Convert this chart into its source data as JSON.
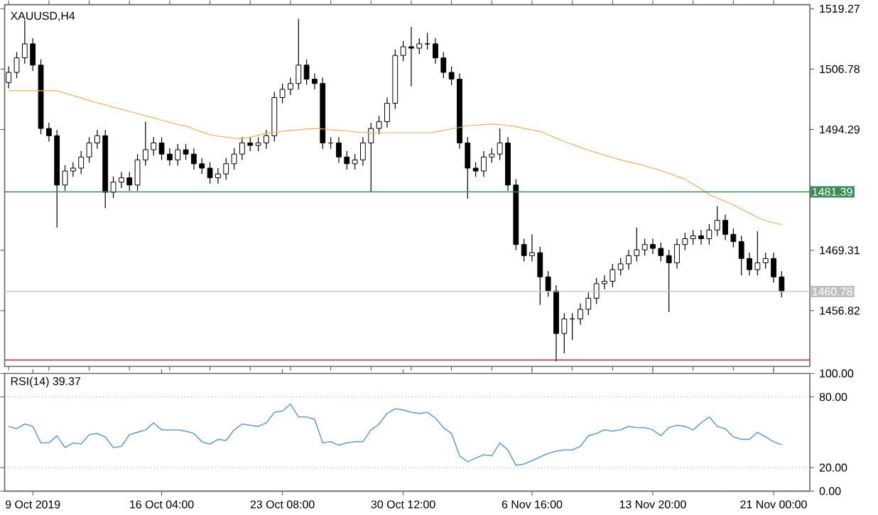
{
  "chart_data": [
    {
      "type": "candlestick",
      "title": "XAUUSD,H4",
      "categories": [
        null,
        null,
        null,
        null,
        null,
        null,
        null,
        null,
        null,
        null,
        null,
        null,
        null,
        null,
        null,
        null,
        null,
        null,
        null,
        null,
        null,
        null,
        null,
        null,
        null,
        null,
        null,
        null,
        null,
        null,
        null,
        null,
        null,
        null,
        null,
        null,
        null,
        null,
        null,
        null,
        null,
        null,
        null,
        null,
        null,
        null,
        null,
        null,
        null,
        null,
        null,
        null,
        null,
        null,
        null,
        null,
        null,
        null,
        null,
        null,
        null,
        null,
        null,
        null,
        null,
        null,
        null,
        null,
        null,
        null,
        null,
        null,
        null,
        null,
        null,
        null,
        null,
        null,
        null,
        null,
        null,
        null,
        null,
        null,
        null,
        null,
        null,
        null,
        null,
        null,
        null,
        null,
        null,
        null,
        null,
        null,
        null
      ],
      "ohlc": [
        [
          1504.0,
          1507.3,
          1502.8,
          1506.1
        ],
        [
          1506.1,
          1510.3,
          1504.9,
          1509.1
        ],
        [
          1509.1,
          1516.9,
          1507.9,
          1512.0
        ],
        [
          1512.0,
          1513.2,
          1506.4,
          1507.6
        ],
        [
          1507.6,
          1508.8,
          1493.3,
          1494.5
        ],
        [
          1494.5,
          1495.7,
          1491.8,
          1493.0
        ],
        [
          1493.0,
          1494.2,
          1474.0,
          1482.8
        ],
        [
          1482.8,
          1486.9,
          1481.6,
          1485.7
        ],
        [
          1485.7,
          1487.5,
          1484.5,
          1486.3
        ],
        [
          1486.3,
          1489.8,
          1485.1,
          1488.6
        ],
        [
          1488.6,
          1492.7,
          1487.4,
          1491.5
        ],
        [
          1491.5,
          1494.2,
          1490.3,
          1493.0
        ],
        [
          1493.0,
          1494.2,
          1478.0,
          1481.3
        ],
        [
          1481.3,
          1484.6,
          1480.1,
          1483.4
        ],
        [
          1483.4,
          1485.5,
          1482.2,
          1484.3
        ],
        [
          1484.3,
          1485.5,
          1481.6,
          1482.8
        ],
        [
          1482.8,
          1489.2,
          1481.6,
          1488.0
        ],
        [
          1488.0,
          1495.9,
          1486.8,
          1490.1
        ],
        [
          1490.1,
          1492.7,
          1488.9,
          1491.5
        ],
        [
          1491.5,
          1492.7,
          1488.0,
          1489.2
        ],
        [
          1489.2,
          1490.4,
          1486.8,
          1488.0
        ],
        [
          1488.0,
          1491.3,
          1486.8,
          1490.1
        ],
        [
          1490.1,
          1491.3,
          1488.0,
          1489.2
        ],
        [
          1489.2,
          1490.4,
          1486.0,
          1487.2
        ],
        [
          1487.2,
          1488.4,
          1485.1,
          1486.3
        ],
        [
          1486.3,
          1487.5,
          1483.1,
          1484.3
        ],
        [
          1484.3,
          1486.3,
          1483.1,
          1485.1
        ],
        [
          1485.1,
          1488.4,
          1483.9,
          1487.2
        ],
        [
          1487.2,
          1490.4,
          1486.0,
          1489.2
        ],
        [
          1489.2,
          1492.7,
          1488.0,
          1491.5
        ],
        [
          1491.5,
          1492.7,
          1489.8,
          1491.0
        ],
        [
          1491.0,
          1492.7,
          1489.8,
          1491.5
        ],
        [
          1491.5,
          1494.2,
          1490.3,
          1493.0
        ],
        [
          1493.0,
          1502.1,
          1491.8,
          1500.9
        ],
        [
          1500.9,
          1503.8,
          1499.7,
          1502.6
        ],
        [
          1502.6,
          1505.0,
          1501.4,
          1503.8
        ],
        [
          1503.8,
          1517.2,
          1502.6,
          1507.6
        ],
        [
          1507.6,
          1508.8,
          1503.5,
          1504.7
        ],
        [
          1504.7,
          1505.9,
          1502.6,
          1503.8
        ],
        [
          1503.8,
          1505.0,
          1490.3,
          1491.5
        ],
        [
          1491.5,
          1492.7,
          1490.3,
          1491.5
        ],
        [
          1491.5,
          1492.7,
          1487.4,
          1488.6
        ],
        [
          1488.6,
          1489.8,
          1486.0,
          1487.2
        ],
        [
          1487.2,
          1489.2,
          1486.0,
          1488.0
        ],
        [
          1488.0,
          1492.7,
          1486.8,
          1491.5
        ],
        [
          1491.5,
          1495.7,
          1481.3,
          1494.5
        ],
        [
          1494.5,
          1497.1,
          1493.3,
          1495.9
        ],
        [
          1495.9,
          1500.9,
          1494.7,
          1499.7
        ],
        [
          1499.7,
          1510.8,
          1498.5,
          1509.6
        ],
        [
          1509.6,
          1512.6,
          1508.4,
          1511.4
        ],
        [
          1511.4,
          1515.5,
          1503.2,
          1511.1
        ],
        [
          1511.1,
          1513.2,
          1509.9,
          1512.0
        ],
        [
          1512.0,
          1514.3,
          1510.8,
          1512.0
        ],
        [
          1512.0,
          1513.2,
          1507.9,
          1509.1
        ],
        [
          1509.1,
          1510.3,
          1504.9,
          1506.1
        ],
        [
          1506.1,
          1507.3,
          1503.5,
          1504.7
        ],
        [
          1504.7,
          1505.9,
          1490.3,
          1491.5
        ],
        [
          1491.5,
          1492.7,
          1480.0,
          1486.3
        ],
        [
          1486.3,
          1487.5,
          1484.5,
          1485.7
        ],
        [
          1485.7,
          1489.8,
          1484.5,
          1488.6
        ],
        [
          1488.6,
          1490.4,
          1487.4,
          1489.2
        ],
        [
          1489.2,
          1494.5,
          1488.0,
          1491.5
        ],
        [
          1491.5,
          1492.7,
          1481.6,
          1482.8
        ],
        [
          1482.8,
          1484.0,
          1469.3,
          1470.5
        ],
        [
          1470.5,
          1471.7,
          1467.0,
          1468.2
        ],
        [
          1468.2,
          1472.6,
          1467.0,
          1468.8
        ],
        [
          1468.8,
          1470.0,
          1458.0,
          1463.8
        ],
        [
          1463.8,
          1465.0,
          1459.7,
          1460.9
        ],
        [
          1460.9,
          1462.1,
          1446.3,
          1452.1
        ],
        [
          1452.1,
          1456.3,
          1448.0,
          1455.1
        ],
        [
          1455.1,
          1456.3,
          1450.7,
          1455.1
        ],
        [
          1455.1,
          1458.3,
          1453.9,
          1457.1
        ],
        [
          1457.1,
          1460.6,
          1455.9,
          1459.4
        ],
        [
          1459.4,
          1463.6,
          1458.2,
          1462.4
        ],
        [
          1462.4,
          1464.1,
          1461.2,
          1462.9
        ],
        [
          1462.9,
          1466.5,
          1461.7,
          1465.3
        ],
        [
          1465.3,
          1467.7,
          1464.1,
          1466.5
        ],
        [
          1466.5,
          1469.4,
          1465.3,
          1468.2
        ],
        [
          1468.2,
          1474.0,
          1467.0,
          1469.4
        ],
        [
          1469.4,
          1471.7,
          1468.2,
          1470.5
        ],
        [
          1470.5,
          1471.7,
          1468.5,
          1469.7
        ],
        [
          1469.7,
          1470.9,
          1467.0,
          1468.2
        ],
        [
          1468.2,
          1469.4,
          1456.5,
          1466.7
        ],
        [
          1466.7,
          1471.7,
          1465.5,
          1470.5
        ],
        [
          1470.5,
          1472.9,
          1469.3,
          1471.7
        ],
        [
          1471.7,
          1473.5,
          1470.5,
          1472.3
        ],
        [
          1472.3,
          1473.5,
          1470.5,
          1471.7
        ],
        [
          1471.7,
          1474.7,
          1470.5,
          1473.5
        ],
        [
          1473.5,
          1478.4,
          1472.3,
          1475.5
        ],
        [
          1475.5,
          1476.7,
          1471.4,
          1472.6
        ],
        [
          1472.6,
          1473.8,
          1469.9,
          1471.1
        ],
        [
          1471.1,
          1472.3,
          1464.1,
          1467.6
        ],
        [
          1467.6,
          1468.8,
          1464.1,
          1465.3
        ],
        [
          1465.3,
          1473.2,
          1464.1,
          1466.7
        ],
        [
          1466.7,
          1468.8,
          1465.5,
          1467.6
        ],
        [
          1467.6,
          1468.8,
          1462.6,
          1463.8
        ],
        [
          1463.8,
          1465.0,
          1459.6,
          1460.8
        ]
      ],
      "series": [
        {
          "type": "line",
          "color": "#e8b060",
          "values": [
            1502.3,
            1502.3,
            1502.3,
            1502.3,
            1502.3,
            1502.3,
            1502.3,
            1501.8,
            1501.3,
            1500.8,
            1500.3,
            1499.8,
            1499.4,
            1498.9,
            1498.5,
            1498.0,
            1497.6,
            1497.1,
            1496.7,
            1496.2,
            1495.8,
            1495.3,
            1495.0,
            1494.4,
            1493.8,
            1493.2,
            1492.9,
            1492.7,
            1492.5,
            1492.4,
            1492.7,
            1493.1,
            1493.5,
            1493.7,
            1493.9,
            1494.1,
            1494.2,
            1494.4,
            1494.5,
            1494.4,
            1494.2,
            1494.1,
            1494.0,
            1493.8,
            1493.7,
            1493.6,
            1493.6,
            1493.6,
            1493.6,
            1493.6,
            1493.6,
            1493.6,
            1493.6,
            1493.8,
            1494.1,
            1494.4,
            1494.7,
            1495.1,
            1495.2,
            1495.3,
            1495.4,
            1495.3,
            1495.1,
            1494.9,
            1494.5,
            1494.2,
            1493.9,
            1493.2,
            1492.5,
            1491.8,
            1491.2,
            1490.6,
            1490.0,
            1489.5,
            1489.0,
            1488.5,
            1488.0,
            1487.6,
            1487.2,
            1486.8,
            1486.3,
            1485.8,
            1485.2,
            1484.6,
            1484.0,
            1483.0,
            1482.0,
            1480.8,
            1480.1,
            1479.4,
            1478.7,
            1477.8,
            1477.0,
            1476.1,
            1475.4,
            1475.0,
            1474.6
          ]
        }
      ],
      "ylim": [
        1445.3,
        1520.1
      ],
      "yticks": [
        1456.82,
        1469.31,
        1494.29,
        1506.78,
        1519.27
      ],
      "ref_lines": [
        {
          "axis": "y",
          "value": 1481.39,
          "label": "1481.39",
          "color": "#3c8c5a"
        },
        {
          "axis": "y",
          "value": 1460.78,
          "label": "1460.78",
          "color": "#c0c0c0"
        },
        {
          "axis": "y",
          "value": 1446.6,
          "color": "#b02040"
        }
      ]
    },
    {
      "type": "line",
      "title": "RSI(14) 39.37",
      "color": "#6a9fc8",
      "categories": [
        null,
        null,
        null,
        "9 Oct 2019",
        null,
        null,
        null,
        null,
        null,
        null,
        null,
        null,
        null,
        null,
        null,
        null,
        null,
        null,
        null,
        "16 Oct 04:00",
        null,
        null,
        null,
        null,
        null,
        null,
        null,
        null,
        null,
        null,
        null,
        null,
        null,
        null,
        "23 Oct 08:00",
        null,
        null,
        null,
        null,
        null,
        null,
        null,
        null,
        null,
        null,
        null,
        null,
        null,
        null,
        "30 Oct 12:00",
        null,
        null,
        null,
        null,
        null,
        null,
        null,
        null,
        null,
        null,
        null,
        null,
        null,
        null,
        null,
        "6 Nov 16:00",
        null,
        null,
        null,
        null,
        null,
        null,
        null,
        null,
        null,
        null,
        null,
        null,
        null,
        null,
        "13 Nov 20:00",
        null,
        null,
        null,
        null,
        null,
        null,
        null,
        null,
        null,
        null,
        null,
        null,
        null,
        null,
        "21 Nov 00:00",
        null
      ],
      "values": [
        55,
        53,
        57,
        55,
        41,
        41,
        47,
        37,
        41,
        40,
        48,
        49,
        46,
        37,
        38,
        48,
        50,
        52,
        58,
        52,
        52,
        52,
        51,
        49,
        42,
        40,
        44,
        43,
        52,
        57,
        56,
        55,
        58,
        67,
        68,
        74,
        63,
        63,
        61,
        41,
        42,
        39,
        41,
        42,
        42,
        52,
        57,
        66,
        70,
        69,
        67,
        66,
        67,
        62,
        54,
        49,
        30,
        25,
        28,
        31,
        30,
        41,
        35,
        22,
        23,
        26,
        29,
        32,
        34,
        35,
        35,
        38,
        47,
        49,
        52,
        51,
        52,
        55,
        54,
        54,
        52,
        47,
        54,
        56,
        55,
        52,
        58,
        63,
        55,
        53,
        46,
        44,
        44,
        50,
        46,
        42,
        39.37
      ],
      "ylim": [
        0,
        100
      ],
      "yticks": [
        {
          "value": 0,
          "label": "0.00"
        },
        {
          "value": 20,
          "label": "20.00"
        },
        {
          "value": 80,
          "label": "80.00"
        },
        {
          "value": 100,
          "label": "100.00"
        }
      ],
      "grid": "y"
    }
  ]
}
